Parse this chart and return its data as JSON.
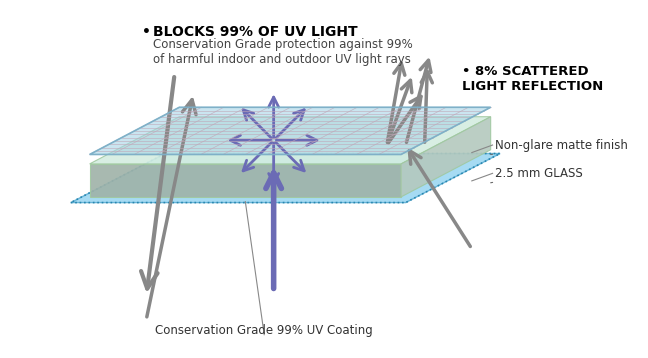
{
  "bg_color": "#ffffff",
  "title_bold": "BLOCKS 99% OF UV LIGHT",
  "title_sub": "Conservation Grade protection against 99%\nof harmful indoor and outdoor UV light rays",
  "scattered_bold": "8% SCATTERED\nLIGHT REFLECTION",
  "label_nonglare": "Non-glare matte finish",
  "label_glass": "2.5 mm GLASS",
  "label_coating": "Conservation Grade 99% UV Coating",
  "purple_color": "#6B6BB5",
  "gray_color": "#888888",
  "grid_color_blue": "#a8d4e6",
  "grid_color_pink": "#e8c8d8",
  "glass_color": "#d4ede0",
  "glass_edge_color": "#a0c8a0",
  "uv_layer_color": "#80ccee",
  "uv_layer_alpha": 0.7
}
